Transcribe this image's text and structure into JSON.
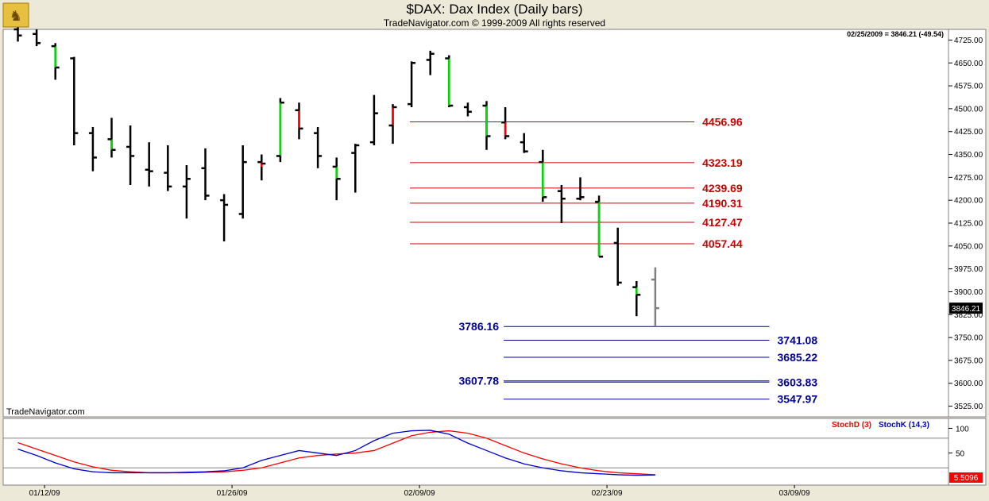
{
  "header": {
    "title": "$DAX:  Dax Index  (Daily bars)",
    "subtitle": "TradeNavigator.com © 1999-2009 All rights reserved",
    "last_quote": "02/25/2009 = 3846.21 (-49.54)",
    "watermark": "TradeNavigator.com"
  },
  "colors": {
    "up_bar": "#00dd00",
    "down_bar": "#ff0000",
    "neutral_bar": "#000000",
    "current_bar": "#808080",
    "resistance": "#cc0000",
    "support": "#000099",
    "stoch_d": "#ff0000",
    "stoch_k": "#0000cc"
  },
  "chart_data": [
    {
      "type": "ohlc",
      "title": "$DAX:  Dax Index  (Daily bars)",
      "y_ticks": [
        "4725.00",
        "4650.00",
        "4575.00",
        "4500.00",
        "4425.00",
        "4350.00",
        "4275.00",
        "4200.00",
        "4125.00",
        "4050.00",
        "3975.00",
        "3900.00",
        "3825.00",
        "3750.00",
        "3675.00",
        "3600.00",
        "3525.00"
      ],
      "ylim": [
        3490,
        4760
      ],
      "last_price_label": "3846.21",
      "x_tick_labels": [
        {
          "label": "01/12/09",
          "index": 1
        },
        {
          "label": "01/26/09",
          "index": 11
        },
        {
          "label": "02/09/09",
          "index": 21
        },
        {
          "label": "02/23/09",
          "index": 31
        },
        {
          "label": "03/09/09",
          "index": 41
        }
      ],
      "bars": [
        {
          "d": "01/08/09",
          "o": 4760,
          "h": 4790,
          "l": 4720,
          "c": 4740,
          "t": "n"
        },
        {
          "d": "01/09/09",
          "o": 4745,
          "h": 4760,
          "l": 4705,
          "c": 4715,
          "t": "n"
        },
        {
          "d": "01/12/09",
          "o": 4705,
          "h": 4715,
          "l": 4595,
          "c": 4635,
          "t": "u"
        },
        {
          "d": "01/13/09",
          "o": 4665,
          "h": 4670,
          "l": 4380,
          "c": 4420,
          "t": "n"
        },
        {
          "d": "01/14/09",
          "o": 4420,
          "h": 4440,
          "l": 4295,
          "c": 4340,
          "t": "n"
        },
        {
          "d": "01/15/09",
          "o": 4400,
          "h": 4470,
          "l": 4340,
          "c": 4365,
          "t": "u"
        },
        {
          "d": "01/16/09",
          "o": 4375,
          "h": 4445,
          "l": 4250,
          "c": 4345,
          "t": "n"
        },
        {
          "d": "01/19/09",
          "o": 4300,
          "h": 4390,
          "l": 4245,
          "c": 4295,
          "t": "n"
        },
        {
          "d": "01/20/09",
          "o": 4290,
          "h": 4380,
          "l": 4230,
          "c": 4245,
          "t": "n"
        },
        {
          "d": "01/21/09",
          "o": 4245,
          "h": 4315,
          "l": 4140,
          "c": 4270,
          "t": "n"
        },
        {
          "d": "01/22/09",
          "o": 4305,
          "h": 4370,
          "l": 4200,
          "c": 4215,
          "t": "n"
        },
        {
          "d": "01/23/09",
          "o": 4200,
          "h": 4220,
          "l": 4065,
          "c": 4185,
          "t": "n"
        },
        {
          "d": "01/26/09",
          "o": 4155,
          "h": 4380,
          "l": 4140,
          "c": 4325,
          "t": "n"
        },
        {
          "d": "01/27/09",
          "o": 4325,
          "h": 4350,
          "l": 4265,
          "c": 4320,
          "t": "d"
        },
        {
          "d": "01/28/09",
          "o": 4345,
          "h": 4535,
          "l": 4325,
          "c": 4520,
          "t": "u"
        },
        {
          "d": "01/29/09",
          "o": 4495,
          "h": 4520,
          "l": 4400,
          "c": 4435,
          "t": "d"
        },
        {
          "d": "01/30/09",
          "o": 4420,
          "h": 4440,
          "l": 4305,
          "c": 4345,
          "t": "n"
        },
        {
          "d": "02/02/09",
          "o": 4310,
          "h": 4340,
          "l": 4200,
          "c": 4270,
          "t": "u"
        },
        {
          "d": "02/03/09",
          "o": 4355,
          "h": 4385,
          "l": 4225,
          "c": 4380,
          "t": "n"
        },
        {
          "d": "02/04/09",
          "o": 4390,
          "h": 4545,
          "l": 4380,
          "c": 4485,
          "t": "n"
        },
        {
          "d": "02/05/09",
          "o": 4445,
          "h": 4515,
          "l": 4385,
          "c": 4505,
          "t": "d"
        },
        {
          "d": "02/06/09",
          "o": 4515,
          "h": 4655,
          "l": 4505,
          "c": 4650,
          "t": "n"
        },
        {
          "d": "02/09/09",
          "o": 4660,
          "h": 4690,
          "l": 4610,
          "c": 4680,
          "t": "n"
        },
        {
          "d": "02/10/09",
          "o": 4665,
          "h": 4675,
          "l": 4505,
          "c": 4510,
          "t": "u"
        },
        {
          "d": "02/11/09",
          "o": 4505,
          "h": 4520,
          "l": 4475,
          "c": 4490,
          "t": "n"
        },
        {
          "d": "02/12/09",
          "o": 4510,
          "h": 4525,
          "l": 4365,
          "c": 4410,
          "t": "u"
        },
        {
          "d": "02/13/09",
          "o": 4455,
          "h": 4505,
          "l": 4400,
          "c": 4410,
          "t": "d"
        },
        {
          "d": "02/16/09",
          "o": 4390,
          "h": 4420,
          "l": 4355,
          "c": 4360,
          "t": "n"
        },
        {
          "d": "02/17/09",
          "o": 4325,
          "h": 4365,
          "l": 4195,
          "c": 4210,
          "t": "u"
        },
        {
          "d": "02/18/09",
          "o": 4230,
          "h": 4250,
          "l": 4125,
          "c": 4205,
          "t": "n"
        },
        {
          "d": "02/19/09",
          "o": 4205,
          "h": 4275,
          "l": 4200,
          "c": 4210,
          "t": "n"
        },
        {
          "d": "02/20/09",
          "o": 4195,
          "h": 4215,
          "l": 4015,
          "c": 4015,
          "t": "u"
        },
        {
          "d": "02/23/09",
          "o": 4060,
          "h": 4110,
          "l": 3920,
          "c": 3930,
          "t": "n"
        },
        {
          "d": "02/24/09",
          "o": 3915,
          "h": 3935,
          "l": 3820,
          "c": 3890,
          "t": "u"
        },
        {
          "d": "02/25/09",
          "o": 3940,
          "h": 3980,
          "l": 3786,
          "c": 3846.21,
          "t": "c"
        }
      ],
      "levels": [
        {
          "value": "4456.96",
          "kind": "resistance",
          "from": 21,
          "to": 36,
          "label_side": "right"
        },
        {
          "value": "4323.19",
          "kind": "resistance",
          "from": 21,
          "to": 36,
          "label_side": "right"
        },
        {
          "value": "4239.69",
          "kind": "resistance",
          "from": 21,
          "to": 36,
          "label_side": "right"
        },
        {
          "value": "4190.31",
          "kind": "resistance",
          "from": 21,
          "to": 36,
          "label_side": "right"
        },
        {
          "value": "4127.47",
          "kind": "resistance",
          "from": 21,
          "to": 36,
          "label_side": "right"
        },
        {
          "value": "4057.44",
          "kind": "resistance",
          "from": 21,
          "to": 36,
          "label_side": "right"
        },
        {
          "value": "3786.16",
          "kind": "support",
          "from": 26,
          "to": 40,
          "label_side": "left"
        },
        {
          "value": "3741.08",
          "kind": "support",
          "from": 26,
          "to": 40,
          "label_side": "right"
        },
        {
          "value": "3685.22",
          "kind": "support",
          "from": 26,
          "to": 40,
          "label_side": "right"
        },
        {
          "value": "3607.78",
          "kind": "support",
          "from": 26,
          "to": 40,
          "label_side": "left"
        },
        {
          "value": "3603.83",
          "kind": "support",
          "from": 26,
          "to": 40,
          "label_side": "right"
        },
        {
          "value": "3547.97",
          "kind": "support",
          "from": 26,
          "to": 40,
          "label_side": "right"
        }
      ]
    },
    {
      "type": "line",
      "title": "",
      "legend": [
        {
          "name": "StochD (3)",
          "color": "#ff0000"
        },
        {
          "name": "StochK (14,3)",
          "color": "#0000cc"
        }
      ],
      "y_ticks": [
        "100",
        "50"
      ],
      "ylim": [
        -15,
        120
      ],
      "reference_lines": [
        80,
        20
      ],
      "last_value_label": "5.5096",
      "series": [
        {
          "name": "StochD (3)",
          "color": "#ff0000",
          "values": [
            71,
            58,
            45,
            32,
            22,
            15,
            12,
            10,
            10,
            10,
            11,
            12,
            15,
            20,
            30,
            40,
            45,
            48,
            50,
            55,
            70,
            85,
            92,
            95,
            90,
            80,
            65,
            50,
            38,
            28,
            20,
            14,
            10,
            8,
            6
          ]
        },
        {
          "name": "StochK (14,3)",
          "color": "#0000cc",
          "values": [
            58,
            45,
            30,
            18,
            12,
            10,
            10,
            10,
            10,
            11,
            12,
            14,
            20,
            35,
            45,
            55,
            50,
            45,
            55,
            75,
            90,
            95,
            96,
            88,
            70,
            55,
            40,
            28,
            20,
            14,
            10,
            8,
            6,
            5,
            5.5
          ]
        }
      ]
    }
  ]
}
